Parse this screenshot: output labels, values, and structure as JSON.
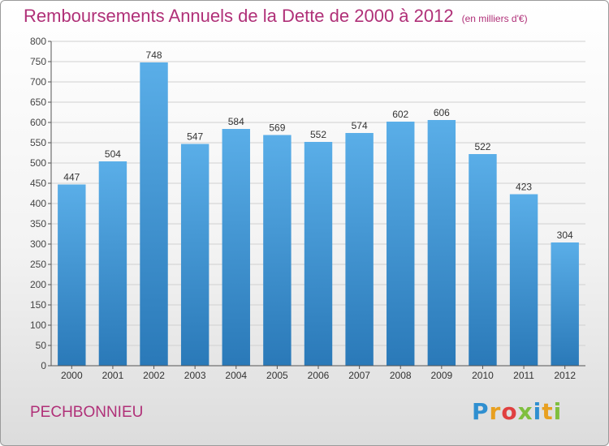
{
  "chart_data": {
    "type": "bar",
    "title": "Remboursements Annuels de la Dette de 2000 à 2012",
    "unit_note": "(en milliers d'€)",
    "categories": [
      "2000",
      "2001",
      "2002",
      "2003",
      "2004",
      "2005",
      "2006",
      "2007",
      "2008",
      "2009",
      "2010",
      "2011",
      "2012"
    ],
    "values": [
      447,
      504,
      748,
      547,
      584,
      569,
      552,
      574,
      602,
      606,
      522,
      423,
      304
    ],
    "ylim": [
      0,
      800
    ],
    "yticks": [
      0,
      50,
      100,
      150,
      200,
      250,
      300,
      350,
      400,
      450,
      500,
      550,
      600,
      650,
      700,
      750,
      800
    ],
    "xlabel": "",
    "ylabel": "",
    "grid": true,
    "bar_color_top": "#5aaee8",
    "bar_color_bottom": "#2a79b8"
  },
  "commune": "PECHBONNIEU",
  "logo": {
    "text": "Proxiti",
    "letter_colors": [
      "#2f8fd0",
      "#e8a020",
      "#e04040",
      "#7fbf3f",
      "#2f8fd0",
      "#e8a020",
      "#7fbf3f"
    ]
  },
  "colors": {
    "accent": "#b03078",
    "grid": "#d0d0d0",
    "axis": "#555555"
  }
}
